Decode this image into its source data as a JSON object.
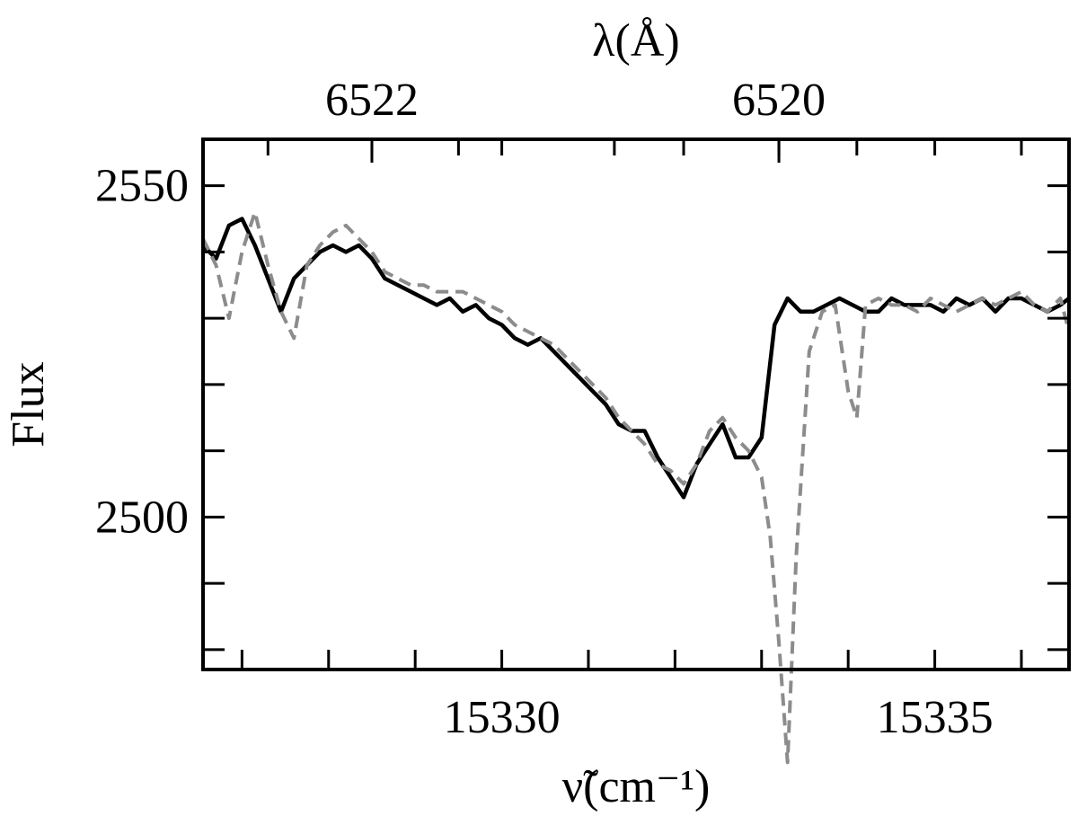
{
  "chart_data": {
    "type": "line",
    "xlabel": "ν̃(cm⁻¹)",
    "ylabel": "Flux",
    "top_xlabel": "λ(Å)",
    "xlim": [
      15326.55,
      15336.55
    ],
    "ylim": [
      2477,
      2557
    ],
    "x_ticks_labeled": [
      15330,
      15335
    ],
    "x_ticks_minor": [
      15327,
      15328,
      15329,
      15330,
      15331,
      15332,
      15333,
      15334,
      15335,
      15336
    ],
    "y_ticks_labeled": [
      2500,
      2550
    ],
    "y_ticks_minor": [
      2480,
      2490,
      2500,
      2510,
      2520,
      2530,
      2540,
      2550
    ],
    "top_ticks_labeled": [
      {
        "label": "6522",
        "wavenumber": 15328.5
      },
      {
        "label": "6520",
        "wavenumber": 15333.2
      }
    ],
    "top_ticks_minor": [
      15327.3,
      15328.5,
      15329.5,
      15330.0,
      15331.3,
      15332.1,
      15333.2,
      15334.1,
      15335.0,
      15336.0
    ],
    "grid": false,
    "legend": "none",
    "series": [
      {
        "style": "solid",
        "color": "#000000",
        "x": [
          15326.55,
          15326.7,
          15326.85,
          15327.0,
          15327.15,
          15327.3,
          15327.45,
          15327.6,
          15327.75,
          15327.9,
          15328.05,
          15328.2,
          15328.35,
          15328.5,
          15328.65,
          15328.8,
          15328.95,
          15329.1,
          15329.25,
          15329.4,
          15329.55,
          15329.7,
          15329.85,
          15330.0,
          15330.15,
          15330.3,
          15330.45,
          15330.6,
          15330.75,
          15330.9,
          15331.05,
          15331.2,
          15331.35,
          15331.5,
          15331.65,
          15331.8,
          15331.95,
          15332.1,
          15332.25,
          15332.4,
          15332.55,
          15332.7,
          15332.85,
          15333.0,
          15333.15,
          15333.3,
          15333.45,
          15333.6,
          15333.75,
          15333.9,
          15334.05,
          15334.2,
          15334.35,
          15334.5,
          15334.65,
          15334.8,
          15334.95,
          15335.1,
          15335.25,
          15335.4,
          15335.55,
          15335.7,
          15335.85,
          15336.0,
          15336.15,
          15336.3,
          15336.45,
          15336.55
        ],
        "values": [
          2541,
          2539,
          2544,
          2545,
          2541,
          2536,
          2531,
          2536,
          2538,
          2540,
          2541,
          2540,
          2541,
          2539,
          2536,
          2535,
          2534,
          2533,
          2532,
          2533,
          2531,
          2532,
          2530,
          2529,
          2527,
          2526,
          2527,
          2525,
          2523,
          2521,
          2519,
          2517,
          2514,
          2513,
          2513,
          2509,
          2506,
          2503,
          2508,
          2511,
          2514,
          2509,
          2509,
          2512,
          2529,
          2533,
          2531,
          2531,
          2532,
          2533,
          2532,
          2531,
          2531,
          2533,
          2532,
          2532,
          2532,
          2531,
          2533,
          2532,
          2533,
          2531,
          2533,
          2533,
          2532,
          2531,
          2532,
          2533
        ]
      },
      {
        "style": "dashed",
        "color": "#8c8c8c",
        "x": [
          15326.55,
          15326.7,
          15326.85,
          15327.0,
          15327.15,
          15327.3,
          15327.45,
          15327.6,
          15327.75,
          15327.9,
          15328.05,
          15328.2,
          15328.35,
          15328.5,
          15328.65,
          15328.8,
          15328.95,
          15329.1,
          15329.25,
          15329.4,
          15329.55,
          15329.7,
          15329.85,
          15330.0,
          15330.15,
          15330.3,
          15330.45,
          15330.6,
          15330.75,
          15330.9,
          15331.05,
          15331.2,
          15331.35,
          15331.5,
          15331.65,
          15331.8,
          15331.95,
          15332.1,
          15332.25,
          15332.4,
          15332.55,
          15332.7,
          15332.85,
          15333.0,
          15333.1,
          15333.2,
          15333.3,
          15333.4,
          15333.55,
          15333.7,
          15333.85,
          15334.0,
          15334.1,
          15334.2,
          15334.35,
          15334.5,
          15334.65,
          15334.8,
          15334.95,
          15335.1,
          15335.25,
          15335.4,
          15335.55,
          15335.7,
          15335.85,
          15336.0,
          15336.15,
          15336.3,
          15336.45,
          15336.55
        ],
        "values": [
          2542,
          2538,
          2530,
          2540,
          2546,
          2538,
          2531,
          2527,
          2538,
          2541,
          2543,
          2544,
          2542,
          2540,
          2537,
          2536,
          2535,
          2535,
          2534,
          2534,
          2534,
          2533,
          2532,
          2531,
          2529,
          2528,
          2527,
          2526,
          2524,
          2522,
          2520,
          2518,
          2515,
          2513,
          2511,
          2508,
          2507,
          2505,
          2508,
          2513,
          2515,
          2512,
          2510,
          2506,
          2497,
          2481,
          2463,
          2494,
          2525,
          2531,
          2532,
          2519,
          2515,
          2532,
          2533,
          2532,
          2532,
          2531,
          2533,
          2532,
          2531,
          2532,
          2533,
          2532,
          2533,
          2534,
          2532,
          2531,
          2533,
          2528
        ]
      }
    ]
  }
}
